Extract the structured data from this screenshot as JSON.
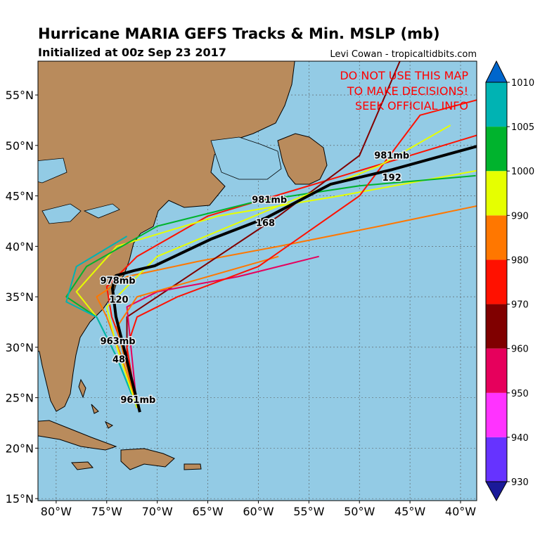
{
  "header": {
    "title": "Hurricane MARIA GEFS Tracks & Min. MSLP (mb)",
    "subtitle": "Initialized at 00z Sep 23 2017",
    "credit": "Levi Cowan - tropicaltidbits.com"
  },
  "map": {
    "warning": [
      "DO NOT USE THIS MAP",
      "TO MAKE DECISIONS!",
      "SEEK OFFICIAL INFO"
    ],
    "xlim": [
      -81.8,
      -38.4
    ],
    "ylim": [
      14.8,
      58.35
    ],
    "xticks": [
      {
        "value": -80,
        "label": "80°W"
      },
      {
        "value": -75,
        "label": "75°W"
      },
      {
        "value": -70,
        "label": "70°W"
      },
      {
        "value": -65,
        "label": "65°W"
      },
      {
        "value": -60,
        "label": "60°W"
      },
      {
        "value": -55,
        "label": "55°W"
      },
      {
        "value": -50,
        "label": "50°W"
      },
      {
        "value": -45,
        "label": "45°W"
      },
      {
        "value": -40,
        "label": "40°W"
      }
    ],
    "yticks": [
      {
        "value": 15,
        "label": "15°N"
      },
      {
        "value": 20,
        "label": "20°N"
      },
      {
        "value": 25,
        "label": "25°N"
      },
      {
        "value": 30,
        "label": "30°N"
      },
      {
        "value": 35,
        "label": "35°N"
      },
      {
        "value": 40,
        "label": "40°N"
      },
      {
        "value": 45,
        "label": "45°N"
      },
      {
        "value": 50,
        "label": "50°N"
      },
      {
        "value": 55,
        "label": "55°N"
      }
    ],
    "grid": true,
    "tracks": [
      {
        "color": "#ff1100",
        "lon": [
          -72,
          -73,
          -74.5,
          -75,
          -72,
          -65,
          -55,
          -45,
          -38.4
        ],
        "lat": [
          24,
          29,
          33,
          36,
          39,
          43,
          46,
          49,
          51
        ]
      },
      {
        "color": "#ff7700",
        "lon": [
          -72,
          -73.5,
          -75,
          -76,
          -73,
          -66,
          -58,
          -48,
          -38.4
        ],
        "lat": [
          24,
          29,
          33,
          35,
          37,
          38.5,
          40,
          42,
          44
        ]
      },
      {
        "color": "#e6ff00",
        "lon": [
          -72,
          -74,
          -76,
          -78,
          -74,
          -64,
          -52,
          -38.4
        ],
        "lat": [
          24,
          29,
          33,
          35.5,
          40,
          43,
          45,
          47.5
        ]
      },
      {
        "color": "#00b32d",
        "lon": [
          -72,
          -74,
          -76,
          -79,
          -77,
          -70,
          -60,
          -50,
          -38.5
        ],
        "lat": [
          24,
          29,
          33,
          35,
          38,
          42,
          44.5,
          46,
          47
        ]
      },
      {
        "color": "#00b3b3",
        "lon": [
          -72,
          -74,
          -76,
          -79,
          -78,
          -73
        ],
        "lat": [
          24,
          29,
          33,
          34.5,
          38,
          41
        ]
      },
      {
        "color": "#800000",
        "lon": [
          -72,
          -73,
          -73,
          -70,
          -58,
          -50,
          -46
        ],
        "lat": [
          24,
          29,
          33,
          35,
          43,
          49,
          58.35
        ]
      },
      {
        "color": "#e6005c",
        "lon": [
          -72,
          -72.5,
          -73,
          -70,
          -62,
          -54
        ],
        "lat": [
          24,
          29,
          34,
          35.5,
          37,
          39
        ]
      },
      {
        "color": "#ff7700",
        "lon": [
          -72,
          -73,
          -74,
          -72,
          -65,
          -58
        ],
        "lat": [
          24,
          28,
          32,
          35,
          37,
          39
        ]
      },
      {
        "color": "#ff1100",
        "lon": [
          -72,
          -73,
          -72,
          -68,
          -60,
          -50,
          -44,
          -38.4
        ],
        "lat": [
          24,
          30,
          33,
          35,
          38,
          45,
          53,
          54.5
        ]
      },
      {
        "color": "#e6ff00",
        "lon": [
          -72,
          -74,
          -75,
          -70,
          -58,
          -48,
          -41
        ],
        "lat": [
          24,
          30,
          34,
          39,
          44,
          48,
          52
        ]
      }
    ],
    "mean_track": {
      "color": "#000000",
      "lon": [
        -71.72,
        -72.7,
        -73.39,
        -74.09,
        -74.43,
        -74.09,
        -72.35,
        -70.26,
        -64.7,
        -59.27,
        -52.87,
        -46.75,
        -38.4
      ],
      "lat": [
        23.57,
        27.47,
        30.26,
        33.05,
        35.84,
        37.09,
        37.58,
        38.07,
        40.71,
        42.8,
        46.15,
        47.61,
        49.91
      ]
    },
    "annotations": [
      {
        "text": "961mb",
        "lon": -71.9,
        "lat": 24.5
      },
      {
        "text": "48",
        "lon": -73.8,
        "lat": 28.5
      },
      {
        "text": "963mb",
        "lon": -73.9,
        "lat": 30.3
      },
      {
        "text": "120",
        "lon": -73.8,
        "lat": 34.4
      },
      {
        "text": "978mb",
        "lon": -73.9,
        "lat": 36.3
      },
      {
        "text": "981mb",
        "lon": -58.9,
        "lat": 44.3
      },
      {
        "text": "168",
        "lon": -59.3,
        "lat": 42.0
      },
      {
        "text": "981mb",
        "lon": -46.8,
        "lat": 48.7
      },
      {
        "text": "192",
        "lon": -46.8,
        "lat": 46.5
      }
    ]
  },
  "colorbar": {
    "boundaries": [
      930,
      940,
      950,
      960,
      970,
      980,
      990,
      1000,
      1005,
      1010
    ],
    "colors": [
      "#6633ff",
      "#ff33ff",
      "#e6005c",
      "#800000",
      "#ff1100",
      "#ff7700",
      "#e6ff00",
      "#00b32d",
      "#00b3b3"
    ],
    "under_color": "#1a1a99",
    "over_color": "#0066cc"
  }
}
